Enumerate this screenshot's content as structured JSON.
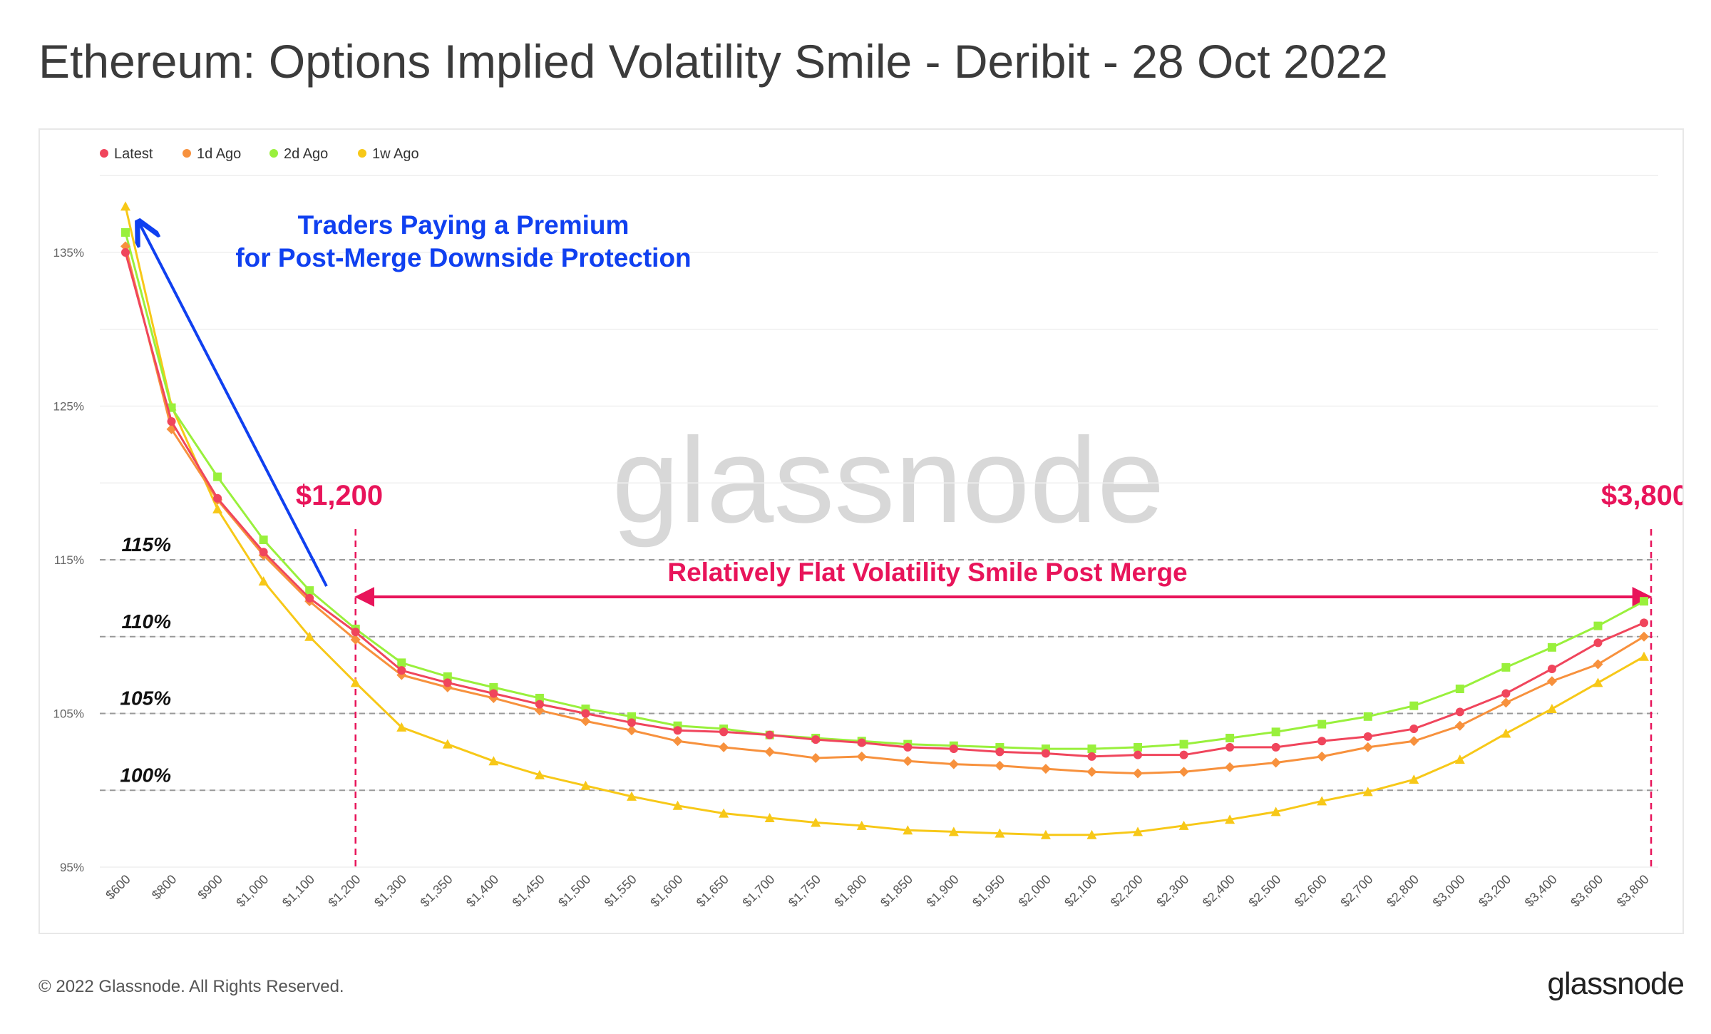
{
  "title": "Ethereum: Options Implied Volatility Smile - Deribit - 28 Oct 2022",
  "footer": {
    "copyright": "© 2022 Glassnode. All Rights Reserved.",
    "brand": "glassnode"
  },
  "colors": {
    "accent_blue": "#1040f0",
    "accent_pink": "#e8145a"
  },
  "chart_data": {
    "type": "line",
    "title": "Ethereum: Options Implied Volatility Smile - Deribit - 28 Oct 2022",
    "watermark": "glassnode",
    "legend_position": "top-left",
    "grid": true,
    "ylim": [
      95,
      140
    ],
    "y_ticks": [
      "95%",
      "105%",
      "115%",
      "125%",
      "135%"
    ],
    "y_tick_values": [
      95,
      105,
      115,
      125,
      135
    ],
    "categories": [
      "$600",
      "$800",
      "$900",
      "$1,000",
      "$1,100",
      "$1,200",
      "$1,300",
      "$1,350",
      "$1,400",
      "$1,450",
      "$1,500",
      "$1,550",
      "$1,600",
      "$1,650",
      "$1,700",
      "$1,750",
      "$1,800",
      "$1,850",
      "$1,900",
      "$1,950",
      "$2,000",
      "$2,100",
      "$2,200",
      "$2,300",
      "$2,400",
      "$2,500",
      "$2,600",
      "$2,700",
      "$2,800",
      "$3,000",
      "$3,200",
      "$3,400",
      "$3,600",
      "$3,800"
    ],
    "series": [
      {
        "name": "Latest",
        "color": "#f0455c",
        "marker": "circle",
        "values": [
          135.0,
          124.0,
          119.0,
          115.5,
          112.5,
          110.3,
          107.8,
          107.0,
          106.3,
          105.6,
          105.0,
          104.4,
          103.9,
          103.8,
          103.6,
          103.3,
          103.1,
          102.8,
          102.7,
          102.5,
          102.4,
          102.2,
          102.3,
          102.3,
          102.8,
          102.8,
          103.2,
          103.5,
          104.0,
          105.1,
          106.3,
          107.9,
          109.6,
          110.9
        ]
      },
      {
        "name": "1d Ago",
        "color": "#f7913d",
        "marker": "diamond",
        "values": [
          135.4,
          123.5,
          118.9,
          115.3,
          112.3,
          109.8,
          107.5,
          106.7,
          106.0,
          105.2,
          104.5,
          103.9,
          103.2,
          102.8,
          102.5,
          102.1,
          102.2,
          101.9,
          101.7,
          101.6,
          101.4,
          101.2,
          101.1,
          101.2,
          101.5,
          101.8,
          102.2,
          102.8,
          103.2,
          104.2,
          105.7,
          107.1,
          108.2,
          110.0
        ]
      },
      {
        "name": "2d Ago",
        "color": "#99f03c",
        "marker": "square",
        "values": [
          136.3,
          124.9,
          120.4,
          116.3,
          113.0,
          110.5,
          108.3,
          107.4,
          106.7,
          106.0,
          105.3,
          104.8,
          104.2,
          104.0,
          103.6,
          103.4,
          103.2,
          103.0,
          102.9,
          102.8,
          102.7,
          102.7,
          102.8,
          103.0,
          103.4,
          103.8,
          104.3,
          104.8,
          105.5,
          106.6,
          108.0,
          109.3,
          110.7,
          112.3
        ]
      },
      {
        "name": "1w Ago",
        "color": "#f7c818",
        "marker": "triangle",
        "values": [
          138.0,
          125.0,
          118.3,
          113.6,
          110.0,
          107.0,
          104.1,
          103.0,
          101.9,
          101.0,
          100.3,
          99.6,
          99.0,
          98.5,
          98.2,
          97.9,
          97.7,
          97.4,
          97.3,
          97.2,
          97.1,
          97.1,
          97.3,
          97.7,
          98.1,
          98.6,
          99.3,
          99.9,
          100.7,
          102.0,
          103.7,
          105.3,
          107.0,
          108.7
        ]
      }
    ],
    "annotations": {
      "premium_line1": "Traders Paying a Premium",
      "premium_line2": "for Post-Merge Downside Protection",
      "left_marker": "$1,200",
      "right_marker": "$3,800",
      "flat_smile": "Relatively Flat Volatility Smile Post Merge",
      "ref_lines": [
        {
          "label": "115%",
          "value": 115
        },
        {
          "label": "110%",
          "value": 110
        },
        {
          "label": "105%",
          "value": 105
        },
        {
          "label": "100%",
          "value": 100
        }
      ]
    }
  }
}
